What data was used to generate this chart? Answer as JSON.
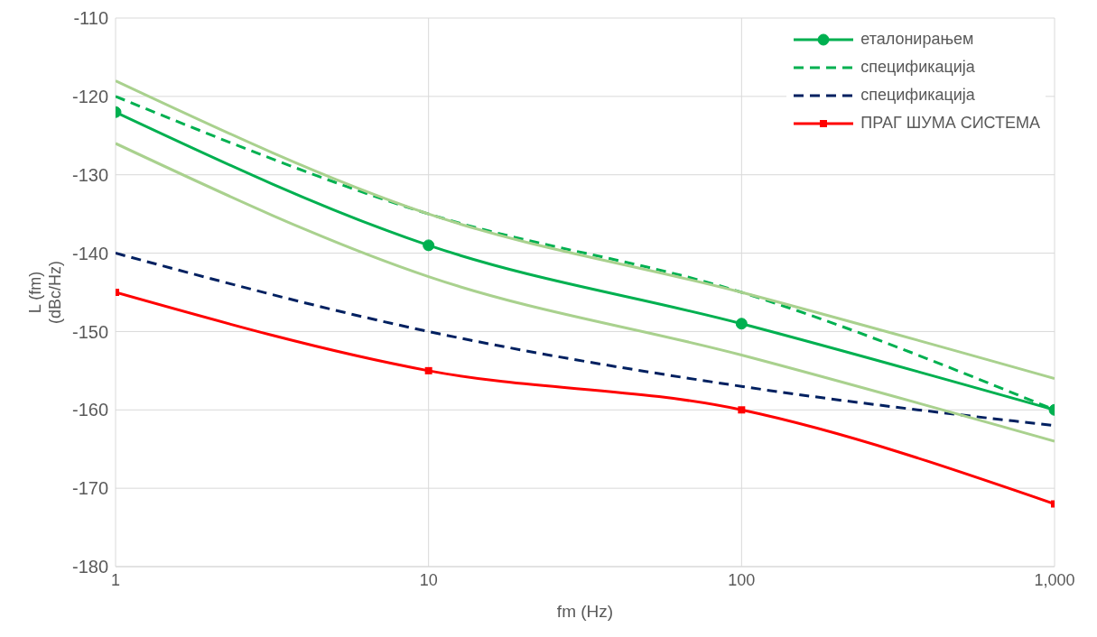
{
  "chart_data": {
    "type": "line",
    "xlabel": "fm (Hz)",
    "ylabel": "L (fm)\n(dBc/Hz)",
    "log": "x",
    "x": [
      1,
      10,
      100,
      1000
    ],
    "xlim": [
      1,
      1000
    ],
    "xticks": [
      1,
      10,
      100,
      {
        "value": 1000,
        "label": "1,000"
      }
    ],
    "ylim": [
      -180,
      -110
    ],
    "yticks": [
      -180,
      -170,
      -160,
      -150,
      -140,
      -130,
      -120,
      -110
    ],
    "grid": true,
    "legend": "top right",
    "marker": "none",
    "line_style": "solid",
    "series": [
      {
        "name": "еталонирањем",
        "color": "#00b050",
        "values": [
          -122,
          -139,
          -149,
          -160
        ],
        "marker": "circle",
        "line_style": "solid"
      },
      {
        "name": "спецификација",
        "color": "#00b050",
        "values": [
          -120,
          -135,
          -145,
          -160
        ],
        "line_style": "dashed"
      },
      {
        "name": "спецификација",
        "color": "#002060",
        "values": [
          -140,
          -150,
          -157,
          -162
        ],
        "line_style": "dashed"
      },
      {
        "name": "ПРАГ ШУМА СИСТЕМА",
        "color": "#ff0000",
        "values": [
          -145,
          -155,
          -160,
          -172
        ],
        "marker": "square",
        "line_style": "solid"
      },
      {
        "color": "#a9d18e",
        "values": [
          -118,
          -135,
          -145,
          -156
        ]
      },
      {
        "color": "#a9d18e",
        "values": [
          -126,
          -143,
          -153,
          -164
        ]
      }
    ]
  }
}
